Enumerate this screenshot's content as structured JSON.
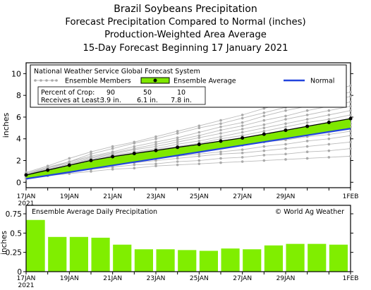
{
  "titles": {
    "line1": "Brazil Soybeans Precipitation",
    "line2": "Forecast Precipitation Compared to Normal (inches)",
    "line3": "Production-Weighted Area Average",
    "line4": "15-Day Forecast Beginning 17 January 2021"
  },
  "colors": {
    "normal": "#2244dd",
    "ensemble_fill": "#7fe800",
    "members": "#bbbbbb",
    "ensemble_line": "#000000",
    "bars": "#80ee00"
  },
  "chart_data": [
    {
      "type": "line",
      "ylabel": "inches",
      "ylim": [
        -0.5,
        11
      ],
      "yticks": [
        0,
        2,
        4,
        6,
        8,
        10
      ],
      "x": [
        0,
        1,
        2,
        3,
        4,
        5,
        6,
        7,
        8,
        9,
        10,
        11,
        12,
        13,
        14,
        15
      ],
      "xlim": [
        0,
        15
      ],
      "xtick_labels": [
        {
          "x": 0,
          "line1": "17JAN",
          "line2": "2021"
        },
        {
          "x": 2,
          "line1": "19JAN"
        },
        {
          "x": 4,
          "line1": "21JAN"
        },
        {
          "x": 6,
          "line1": "23JAN"
        },
        {
          "x": 8,
          "line1": "25JAN"
        },
        {
          "x": 10,
          "line1": "27JAN"
        },
        {
          "x": 12,
          "line1": "29JAN"
        },
        {
          "x": 15,
          "line1": "1FEB"
        }
      ],
      "legend": {
        "header": "National Weather Service Global Forecast System",
        "members_label": "Ensemble Members",
        "ensemble_label": "Ensemble Average",
        "normal_label": "Normal"
      },
      "crop_table": {
        "row1_label": "Percent of Crop:",
        "row1_values": [
          "90",
          "50",
          "10"
        ],
        "row2_label": "Receives at Least:",
        "row2_values": [
          "3.9 in.",
          "6.1 in.",
          "7.8 in."
        ]
      },
      "series": [
        {
          "name": "Ensemble Average",
          "values": [
            0.67,
            1.12,
            1.57,
            2.01,
            2.36,
            2.65,
            2.93,
            3.22,
            3.49,
            3.79,
            4.08,
            4.43,
            4.79,
            5.15,
            5.51,
            5.86
          ]
        },
        {
          "name": "Normal",
          "values": [
            0.32,
            0.62,
            0.93,
            1.24,
            1.55,
            1.86,
            2.16,
            2.47,
            2.78,
            3.09,
            3.4,
            3.71,
            4.02,
            4.33,
            4.64,
            4.94
          ]
        }
      ],
      "members": [
        [
          0.9,
          1.5,
          2.2,
          2.8,
          3.3,
          3.7,
          4.2,
          4.7,
          5.2,
          5.7,
          6.2,
          6.8,
          7.3,
          7.8,
          8.3,
          8.9
        ],
        [
          0.8,
          1.4,
          1.9,
          2.6,
          3.1,
          3.6,
          4.0,
          4.5,
          5.0,
          5.4,
          5.9,
          6.4,
          6.9,
          7.4,
          7.9,
          8.3
        ],
        [
          0.8,
          1.3,
          1.9,
          2.4,
          2.8,
          3.3,
          3.7,
          4.1,
          4.6,
          5.1,
          5.5,
          6.1,
          6.6,
          7.0,
          7.5,
          7.9
        ],
        [
          0.7,
          1.3,
          1.8,
          2.3,
          2.7,
          3.1,
          3.5,
          3.9,
          4.3,
          4.8,
          5.2,
          5.7,
          6.1,
          6.6,
          7.0,
          7.4
        ],
        [
          0.7,
          1.2,
          1.7,
          2.2,
          2.6,
          3.0,
          3.3,
          3.7,
          4.1,
          4.5,
          4.9,
          5.3,
          5.8,
          6.2,
          6.6,
          7.0
        ],
        [
          0.7,
          1.2,
          1.7,
          2.1,
          2.5,
          2.8,
          3.1,
          3.5,
          3.8,
          4.2,
          4.6,
          5.0,
          5.4,
          5.8,
          6.2,
          6.6
        ],
        [
          0.6,
          1.1,
          1.6,
          2.0,
          2.4,
          2.7,
          3.0,
          3.3,
          3.6,
          4.0,
          4.3,
          4.7,
          5.1,
          5.5,
          5.8,
          6.2
        ],
        [
          0.6,
          1.1,
          1.5,
          1.9,
          2.3,
          2.6,
          2.9,
          3.2,
          3.5,
          3.8,
          4.1,
          4.4,
          4.8,
          5.1,
          5.4,
          5.8
        ],
        [
          0.6,
          1.0,
          1.5,
          1.9,
          2.2,
          2.5,
          2.7,
          3.0,
          3.3,
          3.6,
          3.9,
          4.2,
          4.5,
          4.8,
          5.1,
          5.4
        ],
        [
          0.5,
          1.0,
          1.4,
          1.8,
          2.1,
          2.4,
          2.6,
          2.9,
          3.1,
          3.4,
          3.6,
          3.9,
          4.2,
          4.5,
          4.8,
          5.1
        ],
        [
          0.5,
          0.9,
          1.3,
          1.7,
          2.0,
          2.2,
          2.5,
          2.7,
          2.9,
          3.2,
          3.4,
          3.7,
          3.9,
          4.2,
          4.4,
          4.7
        ],
        [
          0.5,
          0.9,
          1.2,
          1.6,
          1.8,
          2.0,
          2.2,
          2.4,
          2.6,
          2.8,
          3.0,
          3.3,
          3.5,
          3.8,
          4.0,
          4.3
        ],
        [
          0.4,
          0.8,
          1.1,
          1.4,
          1.6,
          1.8,
          2.0,
          2.2,
          2.4,
          2.6,
          2.7,
          2.9,
          3.1,
          3.3,
          3.5,
          3.7
        ],
        [
          0.4,
          0.7,
          1.0,
          1.2,
          1.4,
          1.6,
          1.7,
          1.9,
          2.0,
          2.2,
          2.3,
          2.5,
          2.6,
          2.8,
          2.9,
          3.1
        ],
        [
          0.3,
          0.6,
          0.8,
          1.0,
          1.2,
          1.3,
          1.5,
          1.6,
          1.7,
          1.8,
          1.9,
          2.0,
          2.1,
          2.2,
          2.3,
          2.4
        ]
      ]
    },
    {
      "type": "bar",
      "title": "Ensemble Average Daily Precipitation",
      "ylabel": "inches",
      "ylim": [
        0,
        0.75
      ],
      "yticks": [
        0,
        0.25,
        0.5,
        0.75
      ],
      "ytick_labels": [
        "0",
        "0.25",
        "0.5",
        "0.75"
      ],
      "x": [
        0,
        1,
        2,
        3,
        4,
        5,
        6,
        7,
        8,
        9,
        10,
        11,
        12,
        13,
        14
      ],
      "values": [
        0.67,
        0.45,
        0.45,
        0.44,
        0.35,
        0.29,
        0.29,
        0.28,
        0.27,
        0.3,
        0.29,
        0.34,
        0.36,
        0.36,
        0.35
      ],
      "xtick_labels": [
        {
          "x": 0,
          "line1": "17JAN",
          "line2": "2021"
        },
        {
          "x": 2,
          "line1": "19JAN"
        },
        {
          "x": 4,
          "line1": "21JAN"
        },
        {
          "x": 6,
          "line1": "23JAN"
        },
        {
          "x": 8,
          "line1": "25JAN"
        },
        {
          "x": 10,
          "line1": "27JAN"
        },
        {
          "x": 12,
          "line1": "29JAN"
        },
        {
          "x": 15,
          "line1": "1FEB"
        }
      ],
      "copyright": "© World Ag Weather"
    }
  ]
}
